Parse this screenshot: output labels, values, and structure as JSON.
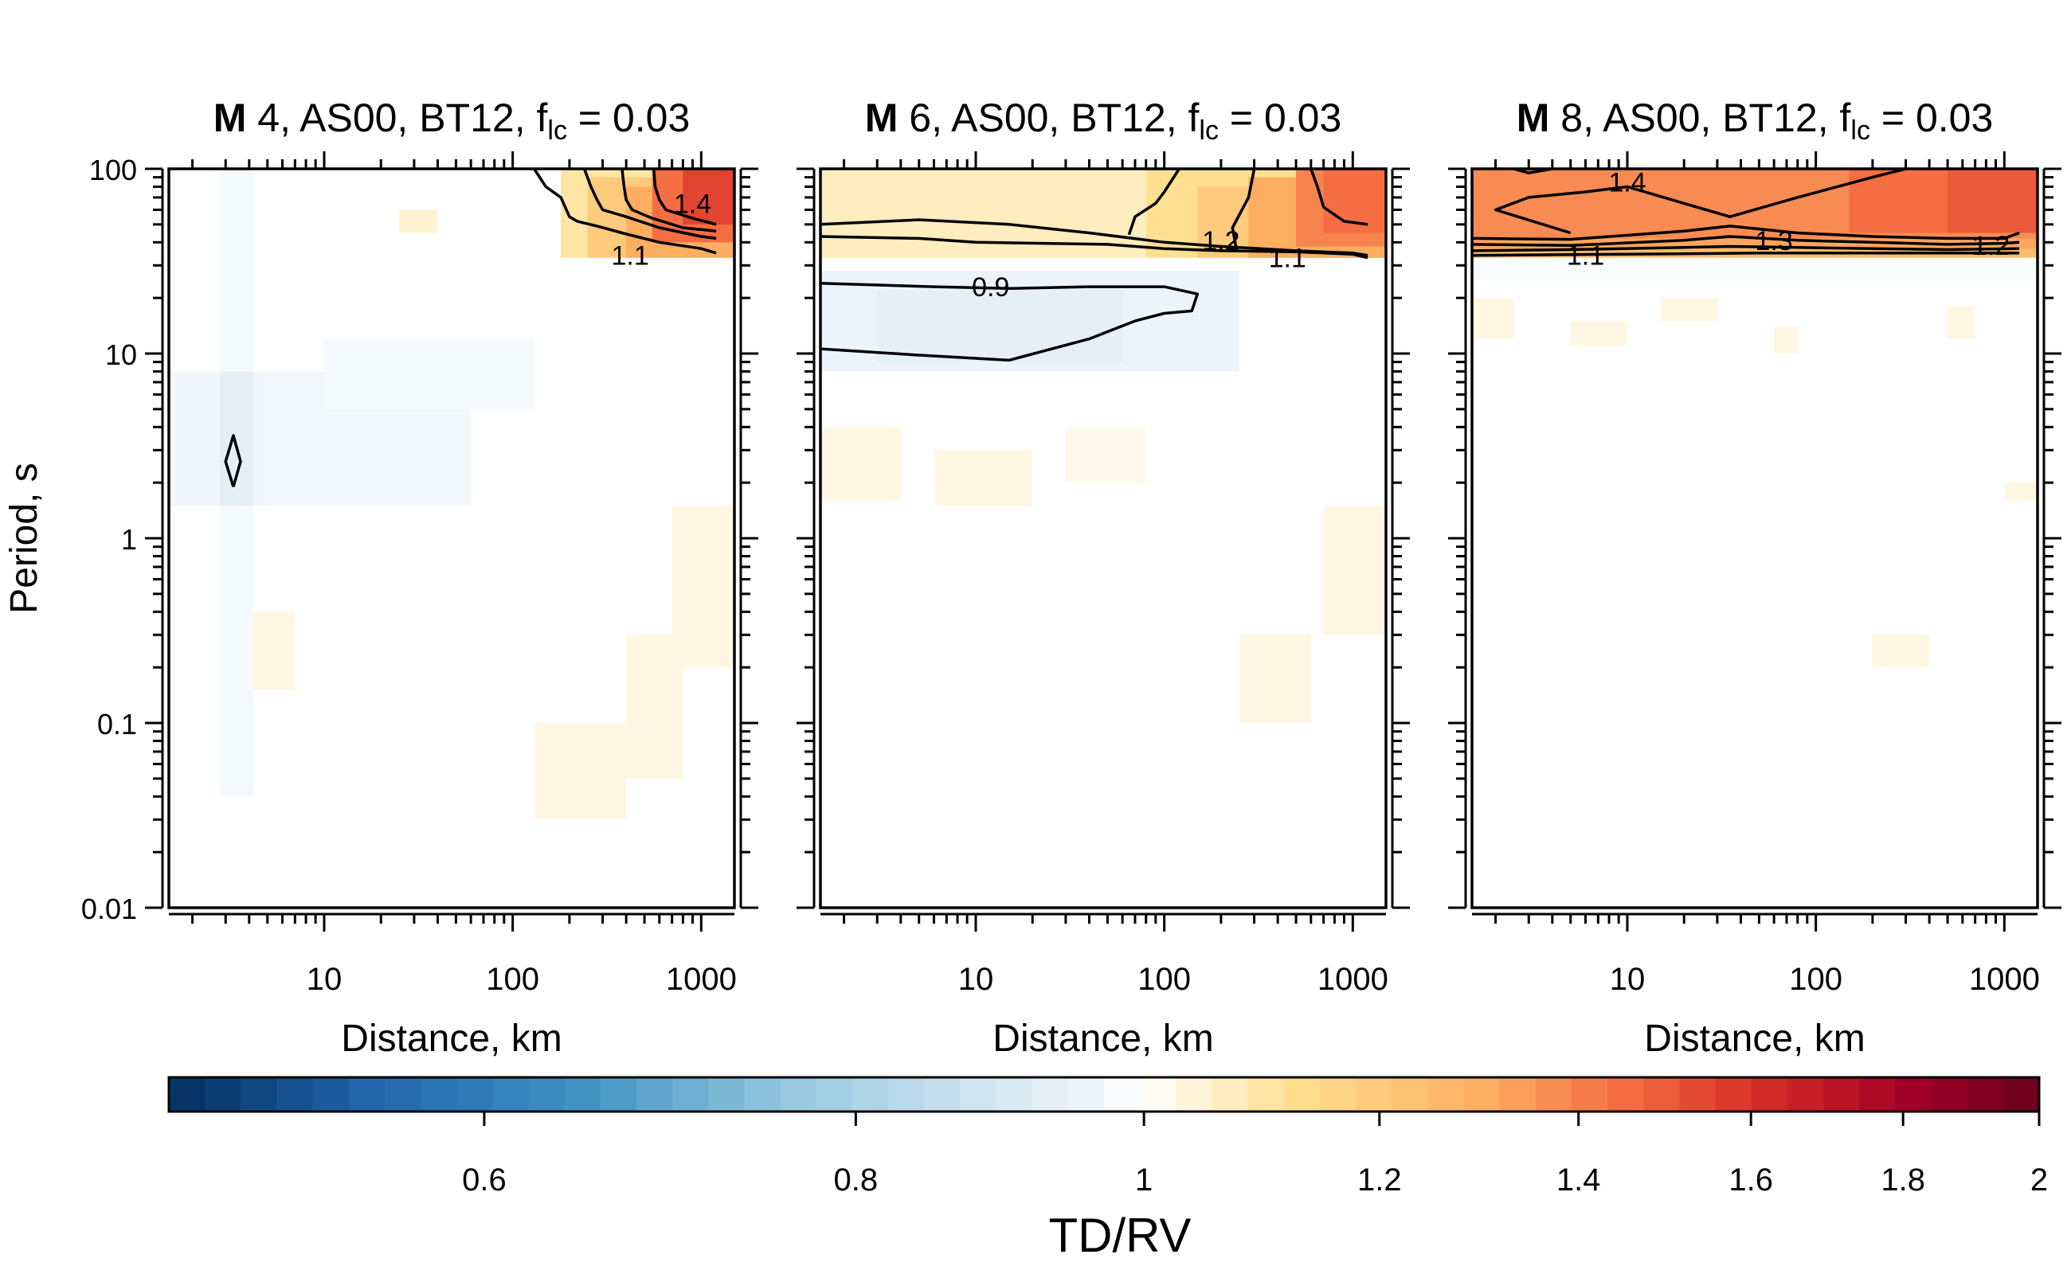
{
  "figure": {
    "colorbar": {
      "label": "TD/RV",
      "ticks": [
        0.6,
        0.8,
        1,
        1.2,
        1.4,
        1.6,
        1.8,
        2
      ],
      "range": [
        0.47,
        2.0
      ],
      "scale": "log",
      "colors": [
        "#053061",
        "#2166ac",
        "#4393c3",
        "#92c5de",
        "#d1e5f0",
        "#ffffff",
        "#fee090",
        "#fdae61",
        "#f46d43",
        "#d73027",
        "#a50026",
        "#67001f"
      ]
    }
  },
  "chart_data": [
    {
      "type": "heatmap",
      "title_bold": "M",
      "title_rest": " 4, AS00, BT12, f",
      "title_sub": "lc",
      "title_tail": " = 0.03",
      "xlabel": "Distance, km",
      "ylabel": "Period, s",
      "x_scale": "log",
      "y_scale": "log",
      "xlim": [
        1.5,
        1500
      ],
      "ylim": [
        0.01,
        100
      ],
      "x_ticks": [
        10,
        100,
        1000
      ],
      "y_ticks": [
        0.01,
        0.1,
        1,
        10,
        100
      ],
      "cells": [
        {
          "x": [
            2.8,
            4.2
          ],
          "y": [
            0.04,
            100
          ],
          "v": 0.97
        },
        {
          "x": [
            1.5,
            10
          ],
          "y": [
            1.5,
            8
          ],
          "v": 0.96
        },
        {
          "x": [
            5,
            60
          ],
          "y": [
            1.5,
            8
          ],
          "v": 0.965
        },
        {
          "x": [
            10,
            130
          ],
          "y": [
            5,
            12
          ],
          "v": 0.975
        },
        {
          "x": [
            2.8,
            4.2
          ],
          "y": [
            1.5,
            8
          ],
          "v": 0.93
        },
        {
          "x": [
            4.2,
            7
          ],
          "y": [
            0.15,
            0.4
          ],
          "v": 1.03
        },
        {
          "x": [
            130,
            400
          ],
          "y": [
            0.03,
            0.1
          ],
          "v": 1.03
        },
        {
          "x": [
            400,
            800
          ],
          "y": [
            0.05,
            0.3
          ],
          "v": 1.03
        },
        {
          "x": [
            700,
            1500
          ],
          "y": [
            0.2,
            1.5
          ],
          "v": 1.03
        },
        {
          "x": [
            25,
            40
          ],
          "y": [
            45,
            60
          ],
          "v": 1.05
        },
        {
          "x": [
            180,
            1500
          ],
          "y": [
            33,
            100
          ],
          "v": 1.1
        },
        {
          "x": [
            250,
            1500
          ],
          "y": [
            33,
            90
          ],
          "v": 1.2
        },
        {
          "x": [
            400,
            1500
          ],
          "y": [
            33,
            80
          ],
          "v": 1.3
        },
        {
          "x": [
            550,
            1500
          ],
          "y": [
            40,
            100
          ],
          "v": 1.45
        },
        {
          "x": [
            800,
            1500
          ],
          "y": [
            50,
            100
          ],
          "v": 1.55
        }
      ],
      "contours": [
        {
          "points": [
            [
              3.3,
              1.9
            ],
            [
              3.0,
              2.6
            ],
            [
              3.3,
              3.6
            ],
            [
              3.6,
              2.6
            ],
            [
              3.3,
              1.9
            ]
          ]
        },
        {
          "points": [
            [
              130,
              100
            ],
            [
              150,
              80
            ],
            [
              180,
              70
            ],
            [
              190,
              62
            ],
            [
              200,
              55
            ],
            [
              220,
              52
            ],
            [
              280,
              49
            ],
            [
              380,
              45
            ],
            [
              600,
              40
            ],
            [
              1000,
              37
            ],
            [
              1200,
              35
            ]
          ],
          "label": "1.1",
          "label_at": [
            420,
            34
          ]
        },
        {
          "points": [
            [
              240,
              100
            ],
            [
              260,
              80
            ],
            [
              280,
              68
            ],
            [
              300,
              60
            ],
            [
              400,
              55
            ],
            [
              600,
              48
            ],
            [
              1000,
              43
            ],
            [
              1200,
              42
            ]
          ]
        },
        {
          "points": [
            [
              380,
              100
            ],
            [
              390,
              80
            ],
            [
              400,
              68
            ],
            [
              430,
              60
            ],
            [
              550,
              54
            ],
            [
              800,
              48
            ],
            [
              1200,
              46
            ]
          ]
        },
        {
          "points": [
            [
              560,
              100
            ],
            [
              570,
              80
            ],
            [
              600,
              68
            ],
            [
              650,
              60
            ],
            [
              900,
              54
            ],
            [
              1200,
              50
            ]
          ],
          "label": "1.4",
          "label_at": [
            900,
            65
          ]
        }
      ]
    },
    {
      "type": "heatmap",
      "title_bold": "M",
      "title_rest": " 6, AS00, BT12, f",
      "title_sub": "lc",
      "title_tail": " = 0.03",
      "xlabel": "Distance, km",
      "ylabel": "",
      "x_scale": "log",
      "y_scale": "log",
      "xlim": [
        1.5,
        1500
      ],
      "ylim": [
        0.01,
        100
      ],
      "x_ticks": [
        10,
        100,
        1000
      ],
      "y_ticks": [
        0.01,
        0.1,
        1,
        10,
        100
      ],
      "cells": [
        {
          "x": [
            1.5,
            250
          ],
          "y": [
            8,
            28
          ],
          "v": 0.95
        },
        {
          "x": [
            3,
            60
          ],
          "y": [
            9,
            22
          ],
          "v": 0.93
        },
        {
          "x": [
            1.5,
            1500
          ],
          "y": [
            33,
            100
          ],
          "v": 1.07
        },
        {
          "x": [
            1.5,
            4
          ],
          "y": [
            1.6,
            4
          ],
          "v": 1.03
        },
        {
          "x": [
            6,
            20
          ],
          "y": [
            1.5,
            3
          ],
          "v": 1.03
        },
        {
          "x": [
            30,
            80
          ],
          "y": [
            2,
            4
          ],
          "v": 1.02
        },
        {
          "x": [
            250,
            600
          ],
          "y": [
            0.1,
            0.3
          ],
          "v": 1.03
        },
        {
          "x": [
            700,
            1500
          ],
          "y": [
            0.3,
            1.5
          ],
          "v": 1.03
        },
        {
          "x": [
            80,
            1500
          ],
          "y": [
            33,
            100
          ],
          "v": 1.12
        },
        {
          "x": [
            150,
            1500
          ],
          "y": [
            33,
            80
          ],
          "v": 1.2
        },
        {
          "x": [
            280,
            1500
          ],
          "y": [
            33,
            90
          ],
          "v": 1.3
        },
        {
          "x": [
            500,
            1500
          ],
          "y": [
            38,
            100
          ],
          "v": 1.4
        },
        {
          "x": [
            700,
            1500
          ],
          "y": [
            45,
            100
          ],
          "v": 1.45
        }
      ],
      "contours": [
        {
          "points": [
            [
              1.5,
              24
            ],
            [
              6,
              23
            ],
            [
              15,
              22.5
            ],
            [
              40,
              23
            ],
            [
              100,
              23
            ],
            [
              150,
              21
            ],
            [
              140,
              17
            ],
            [
              100,
              16.5
            ],
            [
              70,
              15
            ],
            [
              40,
              12
            ],
            [
              15,
              9.2
            ],
            [
              5,
              9.8
            ],
            [
              1.5,
              10.6
            ]
          ],
          "label": "0.9",
          "label_at": [
            12,
            23
          ]
        },
        {
          "points": [
            [
              1.5,
              50
            ],
            [
              5,
              53
            ],
            [
              15,
              50
            ],
            [
              40,
              45
            ],
            [
              100,
              40
            ],
            [
              200,
              38
            ],
            [
              500,
              36
            ],
            [
              1000,
              35
            ],
            [
              1200,
              34
            ]
          ],
          "label": "1.1",
          "label_at": [
            450,
            33
          ]
        },
        {
          "points": [
            [
              1.5,
              43
            ],
            [
              5,
              42
            ],
            [
              10,
              40
            ],
            [
              50,
              39
            ],
            [
              100,
              37
            ],
            [
              200,
              36
            ],
            [
              500,
              35.5
            ],
            [
              1000,
              34.5
            ],
            [
              1200,
              33
            ]
          ]
        },
        {
          "points": [
            [
              65,
              44
            ],
            [
              70,
              55
            ],
            [
              90,
              65
            ],
            [
              100,
              75
            ],
            [
              120,
              100
            ]
          ],
          "label": "1.2",
          "label_at": [
            200,
            41
          ]
        },
        {
          "points": [
            [
              240,
              38
            ],
            [
              230,
              48
            ],
            [
              280,
              70
            ],
            [
              300,
              100
            ]
          ]
        },
        {
          "points": [
            [
              600,
              100
            ],
            [
              650,
              80
            ],
            [
              700,
              62
            ],
            [
              900,
              52
            ],
            [
              1200,
              50
            ]
          ]
        }
      ]
    },
    {
      "type": "heatmap",
      "title_bold": "M",
      "title_rest": " 8, AS00, BT12, f",
      "title_sub": "lc",
      "title_tail": " = 0.03",
      "xlabel": "Distance, km",
      "ylabel": "",
      "x_scale": "log",
      "y_scale": "log",
      "xlim": [
        1.5,
        1500
      ],
      "ylim": [
        0.01,
        100
      ],
      "x_ticks": [
        10,
        100,
        1000
      ],
      "y_ticks": [
        0.01,
        0.1,
        1,
        10,
        100
      ],
      "cells": [
        {
          "x": [
            1.5,
            1500
          ],
          "y": [
            33,
            100
          ],
          "v": 1.25
        },
        {
          "x": [
            1.5,
            1500
          ],
          "y": [
            37,
            100
          ],
          "v": 1.32
        },
        {
          "x": [
            1.5,
            1500
          ],
          "y": [
            42,
            100
          ],
          "v": 1.38
        },
        {
          "x": [
            150,
            1500
          ],
          "y": [
            45,
            100
          ],
          "v": 1.45
        },
        {
          "x": [
            500,
            1500
          ],
          "y": [
            45,
            100
          ],
          "v": 1.5
        },
        {
          "x": [
            1.5,
            1500
          ],
          "y": [
            25,
            33
          ],
          "v": 0.985
        },
        {
          "x": [
            1.5,
            2.5
          ],
          "y": [
            12,
            20
          ],
          "v": 1.03
        },
        {
          "x": [
            5,
            10
          ],
          "y": [
            11,
            15
          ],
          "v": 1.03
        },
        {
          "x": [
            15,
            30
          ],
          "y": [
            15,
            20
          ],
          "v": 1.03
        },
        {
          "x": [
            60,
            80
          ],
          "y": [
            10,
            14
          ],
          "v": 1.03
        },
        {
          "x": [
            500,
            700
          ],
          "y": [
            12,
            18
          ],
          "v": 1.03
        },
        {
          "x": [
            200,
            400
          ],
          "y": [
            0.2,
            0.3
          ],
          "v": 1.03
        },
        {
          "x": [
            1000,
            1500
          ],
          "y": [
            1.6,
            2.0
          ],
          "v": 1.03
        }
      ],
      "contours": [
        {
          "points": [
            [
              2.5,
              100
            ],
            [
              3,
              95
            ],
            [
              4,
              100
            ]
          ]
        },
        {
          "points": [
            [
              5,
              45
            ],
            [
              2,
              60
            ],
            [
              3,
              70
            ],
            [
              6,
              75
            ],
            [
              10,
              80
            ],
            [
              20,
              65
            ],
            [
              35,
              55
            ],
            [
              80,
              70
            ],
            [
              200,
              90
            ],
            [
              300,
              100
            ]
          ],
          "label": "1.4",
          "label_at": [
            10,
            85
          ]
        },
        {
          "points": [
            [
              1.5,
              42
            ],
            [
              5,
              41.5
            ],
            [
              20,
              46
            ],
            [
              35,
              49
            ],
            [
              80,
              45
            ],
            [
              200,
              43
            ],
            [
              500,
              42
            ],
            [
              1000,
              42
            ],
            [
              1200,
              45
            ]
          ],
          "label": "1.3",
          "label_at": [
            60,
            41
          ]
        },
        {
          "points": [
            [
              1.5,
              39
            ],
            [
              5,
              38.5
            ],
            [
              20,
              41
            ],
            [
              35,
              43
            ],
            [
              80,
              41
            ],
            [
              200,
              40
            ],
            [
              500,
              39
            ],
            [
              1000,
              39.5
            ],
            [
              1200,
              40
            ]
          ],
          "label": "1.2",
          "label_at": [
            850,
            38.5
          ]
        },
        {
          "points": [
            [
              1.5,
              36
            ],
            [
              5,
              36.5
            ],
            [
              20,
              37.5
            ],
            [
              35,
              38
            ],
            [
              80,
              37.5
            ],
            [
              200,
              37
            ],
            [
              500,
              36.5
            ],
            [
              1200,
              37
            ]
          ],
          "label": "1.1",
          "label_at": [
            6,
            34
          ]
        },
        {
          "points": [
            [
              1.5,
              34
            ],
            [
              10,
              34.5
            ],
            [
              50,
              35
            ],
            [
              200,
              35
            ],
            [
              1200,
              35
            ]
          ]
        }
      ]
    }
  ]
}
